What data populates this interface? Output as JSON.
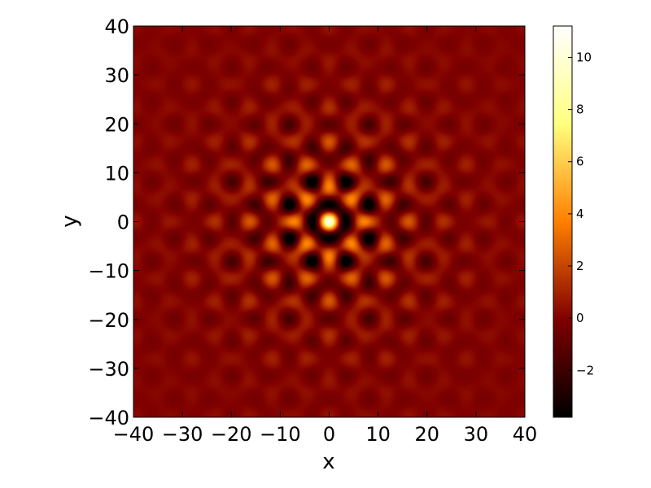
{
  "chart_data": {
    "type": "heatmap",
    "title": "",
    "xlabel": "x",
    "ylabel": "y",
    "xlim": [
      -40,
      40
    ],
    "ylim": [
      -40,
      40
    ],
    "xticks": [
      -40,
      -30,
      -20,
      -10,
      0,
      10,
      20,
      30,
      40
    ],
    "yticks": [
      -40,
      -30,
      -20,
      -10,
      0,
      10,
      20,
      30,
      40
    ],
    "xtick_labels": [
      "−40",
      "−30",
      "−20",
      "−10",
      "0",
      "10",
      "20",
      "30",
      "40"
    ],
    "ytick_labels": [
      "−40",
      "−30",
      "−20",
      "−10",
      "0",
      "10",
      "20",
      "30",
      "40"
    ],
    "colormap": "afmhot",
    "grid": false,
    "z_range": [
      -3.8,
      11.2
    ],
    "pattern": {
      "description_values": "interference lattice: cos(k x)*cos(k y) modulated by a radial envelope",
      "peak_value": 11.0,
      "peak_location": [
        0,
        0
      ],
      "lattice_period": 8.0,
      "envelope_decay": 10.0
    },
    "colorbar": {
      "ticks": [
        -2,
        0,
        2,
        4,
        6,
        8,
        10
      ],
      "tick_labels": [
        "−2",
        "0",
        "2",
        "4",
        "6",
        "8",
        "10"
      ]
    }
  }
}
